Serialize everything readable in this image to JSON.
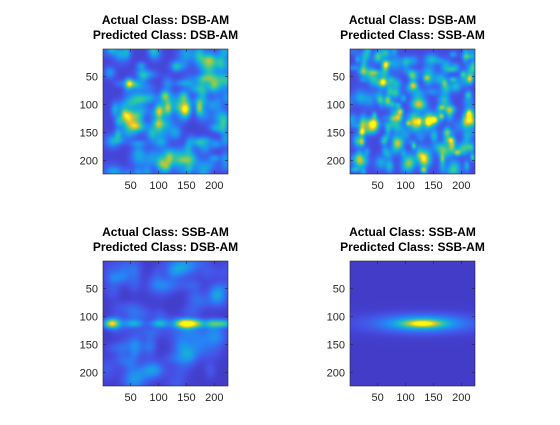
{
  "chart_data": [
    {
      "type": "heatmap",
      "title": [
        "Actual Class: DSB-AM",
        "Predicted Class: DSB-AM"
      ],
      "x_range": [
        1,
        224
      ],
      "y_range": [
        1,
        224
      ],
      "y_direction": "reverse",
      "x_ticks": [
        "50",
        "100",
        "150",
        "200"
      ],
      "y_ticks": [
        "50",
        "100",
        "150",
        "200"
      ],
      "colormap": "parula",
      "pattern": "random speckle with scattered bright spots; brightest blobs near y=110 at x≈100–175"
    },
    {
      "type": "heatmap",
      "title": [
        "Actual Class: DSB-AM",
        "Predicted Class: SSB-AM"
      ],
      "x_range": [
        1,
        224
      ],
      "y_range": [
        1,
        224
      ],
      "y_direction": "reverse",
      "x_ticks": [
        "50",
        "100",
        "150",
        "200"
      ],
      "y_ticks": [
        "50",
        "100",
        "150",
        "200"
      ],
      "colormap": "parula",
      "pattern": "dense random speckle with many small yellow spots throughout"
    },
    {
      "type": "heatmap",
      "title": [
        "Actual Class: SSB-AM",
        "Predicted Class: DSB-AM"
      ],
      "x_range": [
        1,
        224
      ],
      "y_range": [
        1,
        224
      ],
      "y_direction": "reverse",
      "x_ticks": [
        "50",
        "100",
        "150",
        "200"
      ],
      "y_ticks": [
        "50",
        "100",
        "150",
        "200"
      ],
      "colormap": "parula",
      "pattern": "dark background with horizontal band at y≈112; hot spots near x≈15 and x≈150"
    },
    {
      "type": "heatmap",
      "title": [
        "Actual Class: SSB-AM",
        "Predicted Class: SSB-AM"
      ],
      "x_range": [
        1,
        224
      ],
      "y_range": [
        1,
        224
      ],
      "y_direction": "reverse",
      "x_ticks": [
        "50",
        "100",
        "150",
        "200"
      ],
      "y_ticks": [
        "50",
        "100",
        "150",
        "200"
      ],
      "colormap": "parula",
      "pattern": "uniform dark blue background with a single elongated horizontal blob centered at x≈130, y≈112"
    }
  ],
  "colors": {
    "colormap_low": "#3e26a8",
    "colormap_high": "#f9fb0e",
    "axis": "#262626",
    "title": "#000000"
  }
}
